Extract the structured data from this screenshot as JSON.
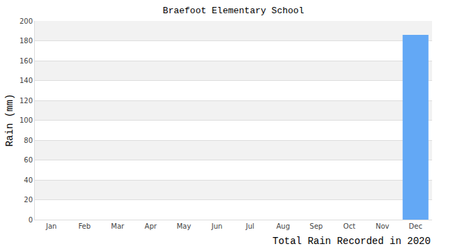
{
  "chart_data": {
    "type": "bar",
    "title": "Braefoot Elementary School",
    "x_label": "Total Rain Recorded in 2020",
    "y_label": "Rain (mm)",
    "categories": [
      "Jan",
      "Feb",
      "Mar",
      "Apr",
      "May",
      "Jun",
      "Jul",
      "Aug",
      "Sep",
      "Oct",
      "Nov",
      "Dec"
    ],
    "values": [
      0,
      0,
      0,
      0,
      0,
      0,
      0,
      0,
      0,
      0,
      0,
      186
    ],
    "color": "#63a8f5",
    "ylim": [
      0,
      200
    ],
    "yticks": [
      0,
      20,
      40,
      60,
      80,
      100,
      120,
      140,
      160,
      180,
      200
    ],
    "grid": true
  }
}
